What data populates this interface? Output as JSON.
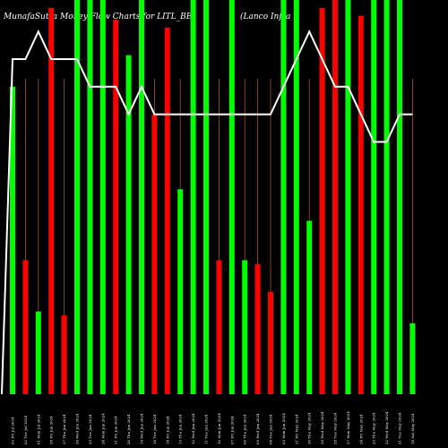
{
  "chart_data": {
    "type": "bar",
    "title_left": "MunafaSutra  Money Flow  Charts for LITL_BE",
    "title_right": "(Lanco  Infra",
    "xlabel": "",
    "ylabel": "",
    "ylim": [
      0,
      100
    ],
    "grid": false,
    "legend": "none",
    "colors": {
      "background": "#000000",
      "up": "#00ff00",
      "down": "#ff0000",
      "line": "#ffffff",
      "gridline": "#a0522d"
    },
    "categories": [
      "03 Fri Jul 2024",
      "02 Tue Jul 2024",
      "01 Mon Jul 2024",
      "28 Fri Jun 2024",
      "27 Thu Jun 2024",
      "26 Wed Jun 2024",
      "25 Tue Jun 2024",
      "24 Mon Jun 2024",
      "21 Fri Jun 2024",
      "20 Thu Jun 2024",
      "19 Wed Jun 2024",
      "18 Tue Jun 2024",
      "14 Fri Jun 2024",
      "13 Thu Jun 2024",
      "12 Wed Jun 2024",
      "11 Tue Jun 2024",
      "10 Mon Jun 2024",
      "07 Fri Jun 2024",
      "06 Thu Jun 2024",
      "05 Wed Jun 2024",
      "04 Tue Jun 2024",
      "03 Mon Jun 2024",
      "31 Fri May 2024",
      "30 Thu May 2024",
      "29 Wed May 2024",
      "28 Tue May 2024",
      "27 Mon May 2024",
      "24 Fri May 2024",
      "23 Thu May 2024",
      "22 Wed May 2024",
      "21 Tue May 2024",
      "18 Sat May 2024"
    ],
    "values": [
      78,
      34,
      21,
      98,
      20,
      100,
      100,
      100,
      95,
      86,
      100,
      71,
      93,
      52,
      100,
      100,
      34,
      100,
      34,
      33,
      26,
      100,
      100,
      44,
      98,
      100,
      100,
      96,
      100,
      100,
      100,
      18
    ],
    "directions": [
      "up",
      "down",
      "up",
      "down",
      "down",
      "up",
      "up",
      "up",
      "down",
      "up",
      "up",
      "down",
      "down",
      "up",
      "up",
      "up",
      "down",
      "up",
      "up",
      "down",
      "down",
      "up",
      "up",
      "up",
      "down",
      "down",
      "up",
      "down",
      "up",
      "up",
      "up",
      "up"
    ],
    "line_values": [
      85,
      85,
      92,
      85,
      85,
      85,
      78,
      78,
      78,
      71,
      78,
      71,
      71,
      71,
      71,
      71,
      71,
      71,
      71,
      71,
      71,
      78,
      85,
      92,
      85,
      78,
      78,
      71,
      64,
      64,
      71,
      71
    ]
  }
}
